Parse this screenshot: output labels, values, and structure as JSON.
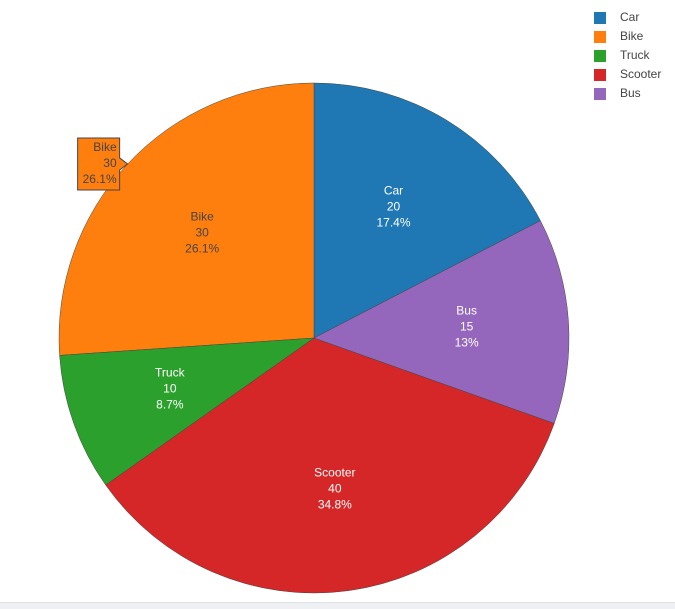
{
  "chart_data": {
    "type": "pie",
    "categories": [
      "Car",
      "Bike",
      "Truck",
      "Scooter",
      "Bus"
    ],
    "values": [
      20,
      30,
      10,
      40,
      15
    ],
    "percent_labels": [
      "17.4%",
      "26.1%",
      "8.7%",
      "34.8%",
      "13%"
    ],
    "colors": [
      "#1f77b4",
      "#ff7f0e",
      "#2ca02c",
      "#d62728",
      "#9467bd"
    ],
    "direction": "counterclockwise",
    "legend": "top-right",
    "hover": {
      "index": 1
    }
  }
}
